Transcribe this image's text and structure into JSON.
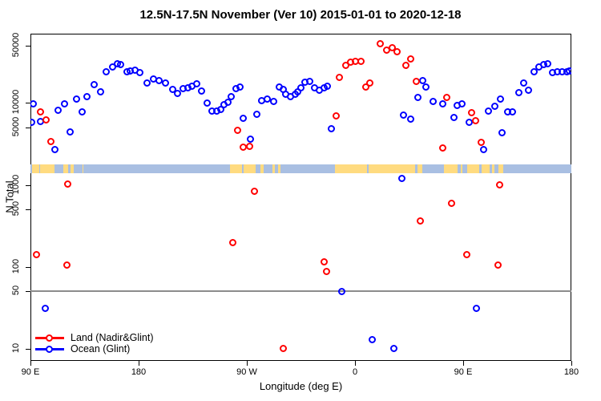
{
  "title": "12.5N-17.5N November (Ver 10)   2015-01-01 to 2020-12-18",
  "axes": {
    "xlabel": "Longitude (deg E)",
    "ylabel": "N Total",
    "x_ticks": [
      {
        "deg": 90,
        "label": "90 E"
      },
      {
        "deg": 180,
        "label": "180"
      },
      {
        "deg": 270,
        "label": "90 W"
      },
      {
        "deg": 360,
        "label": "0"
      },
      {
        "deg": 450,
        "label": "90 E"
      },
      {
        "deg": 540,
        "label": "180"
      }
    ],
    "y_ticks": [
      {
        "value": 10,
        "label": "10"
      },
      {
        "value": 50,
        "label": "50"
      },
      {
        "value": 100,
        "label": "100"
      },
      {
        "value": 500,
        "label": "500"
      },
      {
        "value": 1000,
        "label": "1000"
      },
      {
        "value": 5000,
        "label": "5000"
      },
      {
        "value": 10000,
        "label": "10000"
      },
      {
        "value": 50000,
        "label": "50000"
      }
    ]
  },
  "legend": {
    "items": [
      {
        "label": "Land (Nadir&Glint)",
        "color": "#FF0000"
      },
      {
        "label": "Ocean (Glint)",
        "color": "#0000FF"
      }
    ]
  },
  "colors": {
    "land_points": "#FF0000",
    "ocean_points": "#0000FF",
    "reference_line": "#8C8C8C",
    "map_ocean": "#A9BFE2",
    "map_land": "#FFDB80",
    "axis": "#000000"
  },
  "chart_data": {
    "type": "scatter",
    "title": "12.5N-17.5N November (Ver 10)   2015-01-01 to 2020-12-18",
    "xlabel": "Longitude (deg E)",
    "ylabel": "N Total",
    "x_domain_deg_east_continuing": [
      90,
      540
    ],
    "y_scale": "log10",
    "y_domain": [
      10,
      60000
    ],
    "grid": false,
    "legend_position": "bottom-left-inside",
    "reference_line": {
      "y": 50,
      "color": "#8C8C8C"
    },
    "map_band": {
      "description": "world coastline strip for 12.5N-17.5N drawn across plot",
      "N_top": 1800,
      "N_bottom": 1400,
      "ocean_color": "#A9BFE2",
      "land_color": "#FFDB80",
      "land_segments_deg": [
        [
          91,
          97
        ],
        [
          98,
          110
        ],
        [
          117,
          121
        ],
        [
          123,
          126
        ],
        [
          133,
          134
        ],
        [
          256,
          266
        ],
        [
          267,
          277
        ],
        [
          281,
          284
        ],
        [
          291,
          293
        ],
        [
          296,
          298
        ],
        [
          343,
          370
        ],
        [
          371,
          410
        ],
        [
          412,
          416
        ],
        [
          434,
          445
        ],
        [
          448,
          449
        ],
        [
          453,
          463
        ],
        [
          465,
          472
        ],
        [
          474,
          476
        ],
        [
          479,
          483
        ]
      ]
    },
    "series": [
      {
        "name": "Land (Nadir&Glint)",
        "color": "#FF0000",
        "marker": "open-circle",
        "points": [
          [
            95,
            142
          ],
          [
            98,
            7800
          ],
          [
            103,
            6200
          ],
          [
            107,
            3400
          ],
          [
            120,
            106
          ],
          [
            121,
            1030
          ],
          [
            258,
            196
          ],
          [
            262,
            4600
          ],
          [
            267,
            2900
          ],
          [
            272,
            2940
          ],
          [
            276,
            840
          ],
          [
            300,
            10
          ],
          [
            334,
            115
          ],
          [
            336,
            88
          ],
          [
            344,
            6900
          ],
          [
            347,
            20800
          ],
          [
            352,
            28700
          ],
          [
            356,
            31800
          ],
          [
            360,
            32500
          ],
          [
            365,
            32500
          ],
          [
            369,
            15700
          ],
          [
            372,
            17600
          ],
          [
            381,
            53600
          ],
          [
            386,
            44100
          ],
          [
            391,
            47000
          ],
          [
            395,
            42800
          ],
          [
            402,
            29000
          ],
          [
            406,
            34700
          ],
          [
            411,
            18300
          ],
          [
            414,
            360
          ],
          [
            433,
            2800
          ],
          [
            436,
            11600
          ],
          [
            440,
            600
          ],
          [
            453,
            142
          ],
          [
            457,
            7700
          ],
          [
            460,
            6100
          ],
          [
            465,
            3300
          ],
          [
            479,
            106
          ],
          [
            480,
            1000
          ]
        ]
      },
      {
        "name": "Ocean (Glint)",
        "color": "#0000FF",
        "marker": "open-circle",
        "points": [
          [
            91,
            5800
          ],
          [
            92,
            9800
          ],
          [
            98,
            5900
          ],
          [
            102,
            31
          ],
          [
            110,
            2700
          ],
          [
            113,
            8100
          ],
          [
            118,
            9700
          ],
          [
            123,
            4400
          ],
          [
            128,
            11100
          ],
          [
            133,
            7800
          ],
          [
            137,
            12100
          ],
          [
            143,
            16900
          ],
          [
            148,
            13600
          ],
          [
            153,
            24200
          ],
          [
            158,
            27700
          ],
          [
            162,
            30300
          ],
          [
            165,
            29800
          ],
          [
            170,
            24200
          ],
          [
            173,
            24800
          ],
          [
            177,
            25300
          ],
          [
            181,
            23400
          ],
          [
            187,
            17400
          ],
          [
            192,
            19700
          ],
          [
            197,
            19000
          ],
          [
            202,
            17600
          ],
          [
            208,
            14600
          ],
          [
            212,
            13200
          ],
          [
            217,
            15100
          ],
          [
            221,
            15500
          ],
          [
            224,
            16000
          ],
          [
            228,
            17000
          ],
          [
            232,
            13900
          ],
          [
            237,
            10100
          ],
          [
            241,
            7900
          ],
          [
            245,
            8000
          ],
          [
            248,
            8400
          ],
          [
            251,
            9500
          ],
          [
            254,
            10300
          ],
          [
            257,
            12100
          ],
          [
            261,
            14900
          ],
          [
            264,
            15600
          ],
          [
            267,
            6500
          ],
          [
            273,
            3600
          ],
          [
            278,
            7300
          ],
          [
            282,
            10600
          ],
          [
            287,
            11200
          ],
          [
            292,
            10400
          ],
          [
            297,
            15700
          ],
          [
            300,
            14600
          ],
          [
            302,
            12900
          ],
          [
            306,
            12100
          ],
          [
            310,
            12900
          ],
          [
            312,
            13800
          ],
          [
            315,
            15400
          ],
          [
            318,
            17900
          ],
          [
            322,
            18300
          ],
          [
            326,
            15200
          ],
          [
            330,
            14300
          ],
          [
            334,
            15200
          ],
          [
            337,
            16100
          ],
          [
            340,
            4900
          ],
          [
            349,
            50
          ],
          [
            374,
            13
          ],
          [
            392,
            10
          ],
          [
            399,
            1190
          ],
          [
            400,
            7200
          ],
          [
            406,
            6300
          ],
          [
            412,
            11600
          ],
          [
            416,
            18700
          ],
          [
            419,
            15700
          ],
          [
            425,
            10400
          ],
          [
            433,
            9800
          ],
          [
            442,
            6700
          ],
          [
            445,
            9300
          ],
          [
            449,
            9800
          ],
          [
            455,
            5800
          ],
          [
            461,
            31
          ],
          [
            467,
            2700
          ],
          [
            471,
            8000
          ],
          [
            476,
            9100
          ],
          [
            481,
            11100
          ],
          [
            482,
            4300
          ],
          [
            487,
            7800
          ],
          [
            491,
            7800
          ],
          [
            496,
            13500
          ],
          [
            500,
            17600
          ],
          [
            504,
            14300
          ],
          [
            509,
            24200
          ],
          [
            513,
            27300
          ],
          [
            517,
            29400
          ],
          [
            520,
            30300
          ],
          [
            524,
            23800
          ],
          [
            528,
            24200
          ],
          [
            532,
            24200
          ],
          [
            536,
            24200
          ],
          [
            538,
            24800
          ]
        ]
      }
    ]
  }
}
